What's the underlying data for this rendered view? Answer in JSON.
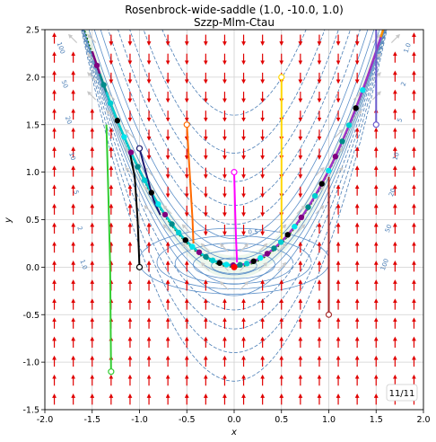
{
  "chart_data": {
    "type": "line",
    "title_line1": "Rosenbrock-wide-saddle (1.0, -10.0, 1.0)",
    "title_line2": "Szzp-Mlm-Ctau",
    "xlabel": "x",
    "ylabel": "y",
    "xlim": [
      -2.0,
      2.0
    ],
    "ylim": [
      -1.5,
      2.5
    ],
    "xticks": [
      "-2.0",
      "-1.5",
      "-1.0",
      "-0.5",
      "0.0",
      "0.5",
      "1.0",
      "1.5",
      "2.0"
    ],
    "yticks": [
      "-1.5",
      "-1.0",
      "-0.5",
      "0.0",
      "0.5",
      "1.0",
      "1.5",
      "2.0",
      "2.5"
    ],
    "grid": true,
    "frame_badge": "11/11",
    "minimum": [
      0.0,
      0.0
    ],
    "contour_labels": [
      "100",
      "50",
      "20",
      "10",
      "5",
      "2",
      "1.0",
      "0.5",
      "1.0",
      "2",
      "5",
      "10",
      "20",
      "50",
      "100"
    ],
    "series": [
      {
        "color": "#32cd32",
        "start": [
          -1.3,
          -1.1
        ],
        "points": [
          [
            -1.3,
            -1.1
          ],
          [
            -1.31,
            0.0
          ],
          [
            -1.33,
            0.8
          ],
          [
            -1.35,
            1.5
          ]
        ]
      },
      {
        "color": "#000000",
        "start": [
          -1.0,
          0.0
        ],
        "points": [
          [
            -1.0,
            0.0
          ],
          [
            -1.02,
            0.5
          ],
          [
            -1.05,
            0.95
          ],
          [
            -1.1,
            1.2
          ]
        ]
      },
      {
        "color": "#191970",
        "start": [
          -1.0,
          1.25
        ],
        "points": [
          [
            -1.0,
            1.25
          ],
          [
            -0.92,
            0.95
          ],
          [
            -0.85,
            0.7
          ],
          [
            -0.78,
            0.55
          ]
        ]
      },
      {
        "color": "#ff6a00",
        "start": [
          -0.5,
          1.5
        ],
        "points": [
          [
            -0.5,
            1.5
          ],
          [
            -0.47,
            1.0
          ],
          [
            -0.44,
            0.5
          ],
          [
            -0.43,
            0.25
          ]
        ]
      },
      {
        "color": "#ff00ff",
        "start": [
          0.0,
          1.0
        ],
        "points": [
          [
            0.0,
            1.0
          ],
          [
            0.01,
            0.6
          ],
          [
            0.02,
            0.3
          ],
          [
            0.03,
            0.05
          ]
        ]
      },
      {
        "color": "#ffd700",
        "start": [
          0.5,
          2.0
        ],
        "points": [
          [
            0.5,
            2.0
          ],
          [
            0.5,
            1.2
          ],
          [
            0.5,
            0.55
          ],
          [
            0.5,
            0.25
          ]
        ]
      },
      {
        "color": "#a52a2a",
        "start": [
          1.0,
          -0.5
        ],
        "points": [
          [
            1.0,
            -0.5
          ],
          [
            1.0,
            0.2
          ],
          [
            1.0,
            0.7
          ],
          [
            1.0,
            0.95
          ]
        ]
      },
      {
        "color": "#6a5acd",
        "start": [
          1.5,
          1.5
        ],
        "points": [
          [
            1.5,
            1.5
          ],
          [
            1.5,
            1.9
          ],
          [
            1.5,
            2.2
          ],
          [
            1.5,
            2.5
          ]
        ]
      }
    ],
    "valley_paths": [
      {
        "color": "#800080",
        "start_x": -1.5
      },
      {
        "color": "#008b8b",
        "start_x": -1.42
      },
      {
        "color": "#00ced1",
        "start_x": -1.35
      },
      {
        "color": "#ff8c00",
        "start_x": 1.62
      },
      {
        "color": "#9932cc",
        "start_x": 1.55
      }
    ]
  }
}
